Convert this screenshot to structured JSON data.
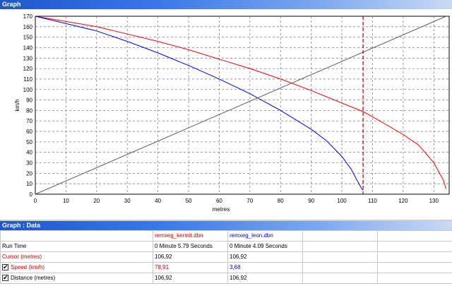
{
  "window": {
    "graph_title": "Graph",
    "data_title": "Graph : Data"
  },
  "chart_data": {
    "type": "line",
    "xlabel": "metres",
    "ylabel": "km/h",
    "xlim": [
      0,
      135
    ],
    "ylim": [
      0,
      170
    ],
    "x_ticks": [
      "0",
      "10",
      "20",
      "30",
      "40",
      "50",
      "60",
      "70",
      "80",
      "90",
      "100",
      "110",
      "120",
      "130"
    ],
    "y_ticks": [
      "0",
      "10",
      "20",
      "30",
      "40",
      "50",
      "60",
      "70",
      "80",
      "90",
      "100",
      "110",
      "120",
      "130",
      "140",
      "150",
      "160",
      "170"
    ],
    "grid": true,
    "cursor_x": 106.92,
    "series": [
      {
        "color": "#ff0000",
        "points": [
          [
            0,
            170
          ],
          [
            10,
            165
          ],
          [
            20,
            160
          ],
          [
            30,
            153
          ],
          [
            40,
            146
          ],
          [
            50,
            138
          ],
          [
            60,
            129
          ],
          [
            70,
            120
          ],
          [
            80,
            110
          ],
          [
            90,
            99
          ],
          [
            100,
            87
          ],
          [
            106.92,
            78.91
          ],
          [
            110,
            74
          ],
          [
            120,
            57
          ],
          [
            125,
            47
          ],
          [
            130,
            30
          ],
          [
            133,
            14
          ],
          [
            134,
            5
          ]
        ]
      },
      {
        "color": "#0000ff",
        "points": [
          [
            0,
            170
          ],
          [
            10,
            163
          ],
          [
            20,
            156
          ],
          [
            30,
            146
          ],
          [
            40,
            135
          ],
          [
            50,
            123
          ],
          [
            60,
            110
          ],
          [
            70,
            96
          ],
          [
            80,
            80
          ],
          [
            90,
            62
          ],
          [
            95,
            51
          ],
          [
            100,
            36
          ],
          [
            103,
            24
          ],
          [
            105,
            13
          ],
          [
            106.5,
            5
          ],
          [
            106.92,
            3.68
          ]
        ]
      },
      {
        "color": "#606060",
        "points": [
          [
            0,
            0
          ],
          [
            134,
            170
          ]
        ]
      }
    ]
  },
  "data_table": {
    "columns": [
      "",
      "remxeg_kermit.dbn",
      "remxeg_leon.dbn",
      ""
    ],
    "rows": [
      {
        "label": "Run Time",
        "checkbox": false,
        "values": [
          "0 Minute 5.79 Seconds",
          "0 Minute 4.09 Seconds"
        ]
      },
      {
        "label": "Cursor (metres)",
        "checkbox": false,
        "values": [
          "106,92",
          "106,92"
        ]
      },
      {
        "label": "Speed (km/h)",
        "checkbox": true,
        "values": [
          "78,91",
          "3,68"
        ]
      },
      {
        "label": "Distance (metres)",
        "checkbox": true,
        "values": [
          "106,92",
          "106,92"
        ]
      }
    ],
    "checkbox_glyph": "✔"
  }
}
